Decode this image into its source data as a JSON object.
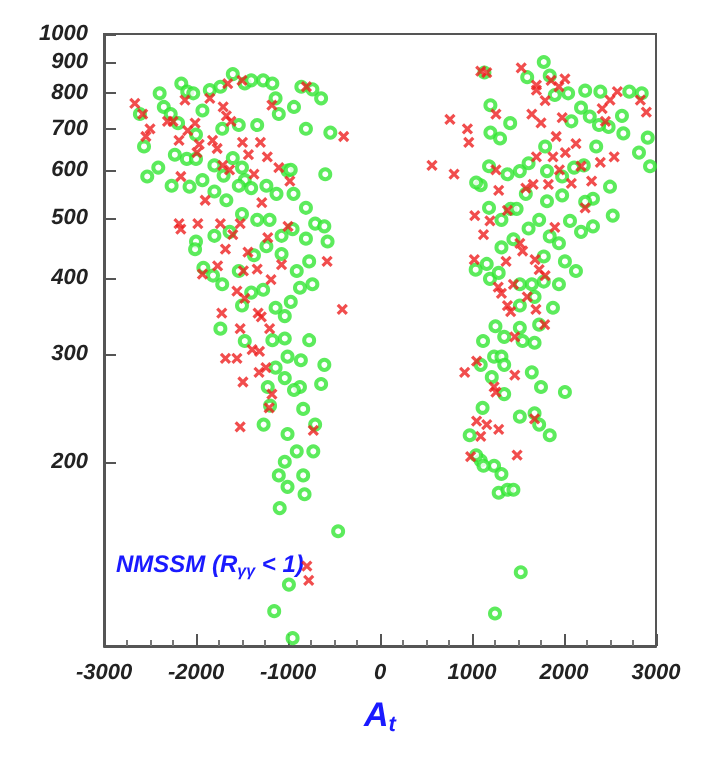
{
  "chart_data": {
    "type": "scatter",
    "xlabel": "A$_{t}$",
    "annotations": [
      "NMSSM (R$_{γγ}$ < 1)"
    ],
    "log": "y",
    "grid": false,
    "xlim": [
      -3000,
      3000
    ],
    "xticks": [
      -3000,
      -2000,
      -1000,
      0,
      1000,
      2000,
      3000
    ],
    "ylim": [
      100,
      1000
    ],
    "yticks": [
      {
        "value": 100,
        "label": null
      },
      200,
      300,
      400,
      500,
      600,
      700,
      800,
      900,
      1000
    ],
    "series": [
      {
        "color": "#33e633",
        "marker": "circle",
        "x": [
          -2610,
          -2565,
          -2530,
          -2410,
          -2395,
          -2350,
          -2275,
          -2195,
          -2160,
          -2095,
          -2030,
          -1930,
          -1850,
          -1735,
          -1600,
          -1470,
          -1400,
          -1270,
          -1170,
          -1135,
          -855,
          -735,
          -935,
          -640,
          -540,
          -805,
          -1100,
          -1335,
          -1535,
          -1715,
          -2000,
          -2230,
          -2100,
          -2000,
          -2265,
          -2070,
          -1930,
          -1800,
          -1700,
          -1600,
          -1500,
          -1470,
          -1400,
          -1535,
          -1670,
          -1800,
          -1235,
          -1125,
          -1005,
          -970,
          -940,
          -805,
          -595,
          -705,
          -605,
          -570,
          -805,
          -950,
          -1070,
          -1200,
          -1335,
          -1500,
          -1635,
          -1800,
          -2000,
          -2010,
          -1920,
          -1815,
          -1715,
          -1535,
          -1370,
          -1235,
          -1070,
          -905,
          -770,
          -735,
          -870,
          -970,
          -1135,
          -1270,
          -1400,
          -1500,
          -1735,
          -1470,
          -1170,
          -1035,
          -1035,
          -770,
          -860,
          -1005,
          -1135,
          -1035,
          -870,
          -935,
          -640,
          -605,
          -1220,
          -1195,
          -1265,
          -835,
          -705,
          -1005,
          -905,
          -725,
          -1035,
          -1100,
          -835,
          -1005,
          -820,
          -1090,
          -455,
          -990,
          -1150,
          -950,
          1135,
          1200,
          1200,
          1305,
          1415,
          1600,
          1780,
          1845,
          1900,
          2045,
          2230,
          2395,
          2710,
          2845,
          2910,
          2935,
          2815,
          2645,
          2485,
          2350,
          2215,
          2315,
          2500,
          2530,
          2315,
          2185,
          2065,
          1980,
          1815,
          1730,
          1845,
          1945,
          1780,
          2010,
          2130,
          1945,
          1780,
          1650,
          1520,
          1680,
          1520,
          1880,
          1730,
          1520,
          1350,
          1550,
          1680,
          1255,
          1120,
          1240,
          1320,
          1350,
          1215,
          1350,
          1650,
          1750,
          2010,
          1095,
          1115,
          1520,
          1730,
          1680,
          1845,
          975,
          1095,
          1240,
          1320,
          1290,
          1385,
          1450,
          1530,
          1250,
          1040,
          1160,
          1195,
          1290,
          1320,
          1450,
          1320,
          1420,
          1185,
          1095,
          1045,
          1185,
          1385,
          1520,
          1615,
          1795,
          2080,
          2185,
          2280,
          2380,
          2630,
          1815,
          1980,
          2110,
          2230,
          1585,
          1485,
          1615,
          1125,
          1045
        ],
        "values": [
          740,
          655,
          585,
          605,
          800,
          760,
          740,
          715,
          830,
          805,
          800,
          750,
          810,
          820,
          860,
          830,
          840,
          840,
          830,
          785,
          820,
          812,
          760,
          785,
          690,
          700,
          740,
          710,
          710,
          700,
          685,
          635,
          625,
          625,
          565,
          563,
          577,
          610,
          587,
          627,
          605,
          577,
          560,
          565,
          535,
          553,
          565,
          548,
          598,
          600,
          548,
          520,
          590,
          490,
          485,
          458,
          463,
          480,
          468,
          497,
          497,
          508,
          475,
          468,
          458,
          445,
          415,
          403,
          390,
          410,
          435,
          450,
          437,
          410,
          425,
          390,
          385,
          365,
          357,
          382,
          378,
          360,
          330,
          315,
          316,
          346,
          318,
          316,
          293,
          297,
          285,
          274,
          265,
          262,
          268,
          288,
          265,
          247,
          230,
          244,
          230,
          222,
          208,
          208,
          200,
          190,
          190,
          182,
          177,
          168,
          154,
          126,
          114,
          103,
          865,
          765,
          690,
          675,
          715,
          850,
          900,
          855,
          795,
          800,
          808,
          805,
          805,
          800,
          677,
          608,
          640,
          688,
          705,
          655,
          610,
          538,
          563,
          505,
          485,
          475,
          495,
          545,
          533,
          497,
          467,
          455,
          433,
          425,
          410,
          390,
          394,
          390,
          390,
          372,
          360,
          357,
          335,
          331,
          320,
          315,
          313,
          333,
          315,
          297,
          297,
          288,
          275,
          258,
          280,
          265,
          260,
          288,
          245,
          237,
          230,
          240,
          221,
          221,
          201,
          197,
          191,
          178,
          180,
          180,
          132,
          113,
          412,
          421,
          398,
          407,
          448,
          462,
          497,
          518,
          520,
          566,
          572,
          608,
          590,
          597,
          615,
          655,
          720,
          758,
          733,
          710,
          735,
          597,
          585,
          605,
          532,
          548,
          518,
          481,
          197,
          205
        ]
      },
      {
        "color": "#ee2020",
        "marker": "cross",
        "x": [
          -2665,
          -2580,
          -2545,
          -2500,
          -2310,
          -2250,
          -2185,
          -2120,
          -2090,
          -2010,
          -1990,
          -1965,
          -1850,
          -1820,
          -1770,
          -1655,
          -1705,
          -1670,
          -1620,
          -1710,
          -1635,
          -1500,
          -1495,
          -1430,
          -1370,
          -1300,
          -1225,
          -1175,
          -1100,
          -980,
          -800,
          -575,
          -395,
          -410,
          -2165,
          -2185,
          -2165,
          -1980,
          -1900,
          -1735,
          -1680,
          -1600,
          -1520,
          -1435,
          -1285,
          -1220,
          -1000,
          -1070,
          -1765,
          -1930,
          -1485,
          -1335,
          -1185,
          -1555,
          -1470,
          -1325,
          -1290,
          -1720,
          -1520,
          -1200,
          -1390,
          -1310,
          -1680,
          -1555,
          -1315,
          -1240,
          -1490,
          -1175,
          -1205,
          -1520,
          -725,
          -795,
          -775,
          565,
          805,
          760,
          950,
          965,
          1095,
          1160,
          1260,
          1535,
          1030,
          1195,
          1125,
          1385,
          1260,
          1290,
          1025,
          920,
          1050,
          1240,
          1260,
          1465,
          1050,
          1160,
          1095,
          1290,
          985,
          1490,
          1680,
          1285,
          1320,
          1385,
          1420,
          1450,
          1465,
          1695,
          1600,
          1790,
          1370,
          1520,
          1550,
          1685,
          1730,
          1795,
          1900,
          1950,
          2015,
          2080,
          2130,
          2185,
          2230,
          2300,
          2395,
          2545,
          1585,
          1665,
          1830,
          1880,
          1700,
          1915,
          1750,
          1650,
          1700,
          1700,
          1795,
          1860,
          1945,
          2010,
          1980,
          2415,
          2450,
          2500,
          2580,
          2830,
          2895
        ],
        "values": [
          770,
          740,
          680,
          700,
          720,
          720,
          670,
          780,
          695,
          715,
          640,
          660,
          785,
          670,
          650,
          830,
          760,
          735,
          720,
          610,
          600,
          840,
          665,
          635,
          590,
          665,
          630,
          765,
          605,
          575,
          820,
          425,
          680,
          355,
          585,
          490,
          480,
          490,
          535,
          490,
          445,
          470,
          490,
          440,
          530,
          465,
          485,
          420,
          418,
          405,
          410,
          413,
          397,
          380,
          370,
          350,
          345,
          350,
          330,
          330,
          305,
          303,
          295,
          295,
          280,
          285,
          270,
          258,
          245,
          228,
          225,
          135,
          128,
          610,
          590,
          725,
          700,
          665,
          870,
          865,
          740,
          880,
          505,
          495,
          470,
          515,
          600,
          555,
          428,
          280,
          292,
          265,
          260,
          277,
          233,
          230,
          220,
          226,
          204,
          205,
          235,
          386,
          377,
          360,
          352,
          390,
          320,
          355,
          372,
          335,
          425,
          455,
          442,
          428,
          412,
          403,
          483,
          600,
          640,
          570,
          662,
          608,
          520,
          575,
          617,
          630,
          560,
          568,
          568,
          630,
          630,
          680,
          716,
          740,
          810,
          825,
          778,
          840,
          820,
          845,
          730,
          755,
          720,
          780,
          805,
          780,
          745
        ]
      }
    ]
  }
}
